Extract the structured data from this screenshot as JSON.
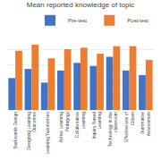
{
  "chart_data": {
    "type": "bar",
    "title": "Mean reported knowledge of topic",
    "categories": [
      "Backwards Design",
      "Designing Learning\nOutcomes",
      "Learning Taxonomies",
      "Active Learning\nPedagogy",
      "Collaborative\nLearning",
      "Inquiry Based\nLearning",
      "Technology in the\nclassroom",
      "Effective use of\nCitizen",
      "Summative\nAssessment"
    ],
    "series": [
      {
        "name": "Pre-test",
        "color": "#4472C4",
        "values": [
          2.1,
          2.7,
          1.8,
          2.6,
          3.1,
          2.9,
          3.5,
          2.6,
          2.3
        ]
      },
      {
        "name": "Post-test",
        "color": "#ED7D31",
        "values": [
          3.9,
          4.3,
          3.4,
          4.0,
          4.1,
          3.7,
          4.2,
          4.2,
          3.3
        ]
      }
    ],
    "ylim": [
      0,
      5
    ],
    "yticks": [
      0,
      1,
      2,
      3,
      4,
      5
    ],
    "grid": true,
    "legend": "upper right",
    "tick_labels": "x"
  }
}
